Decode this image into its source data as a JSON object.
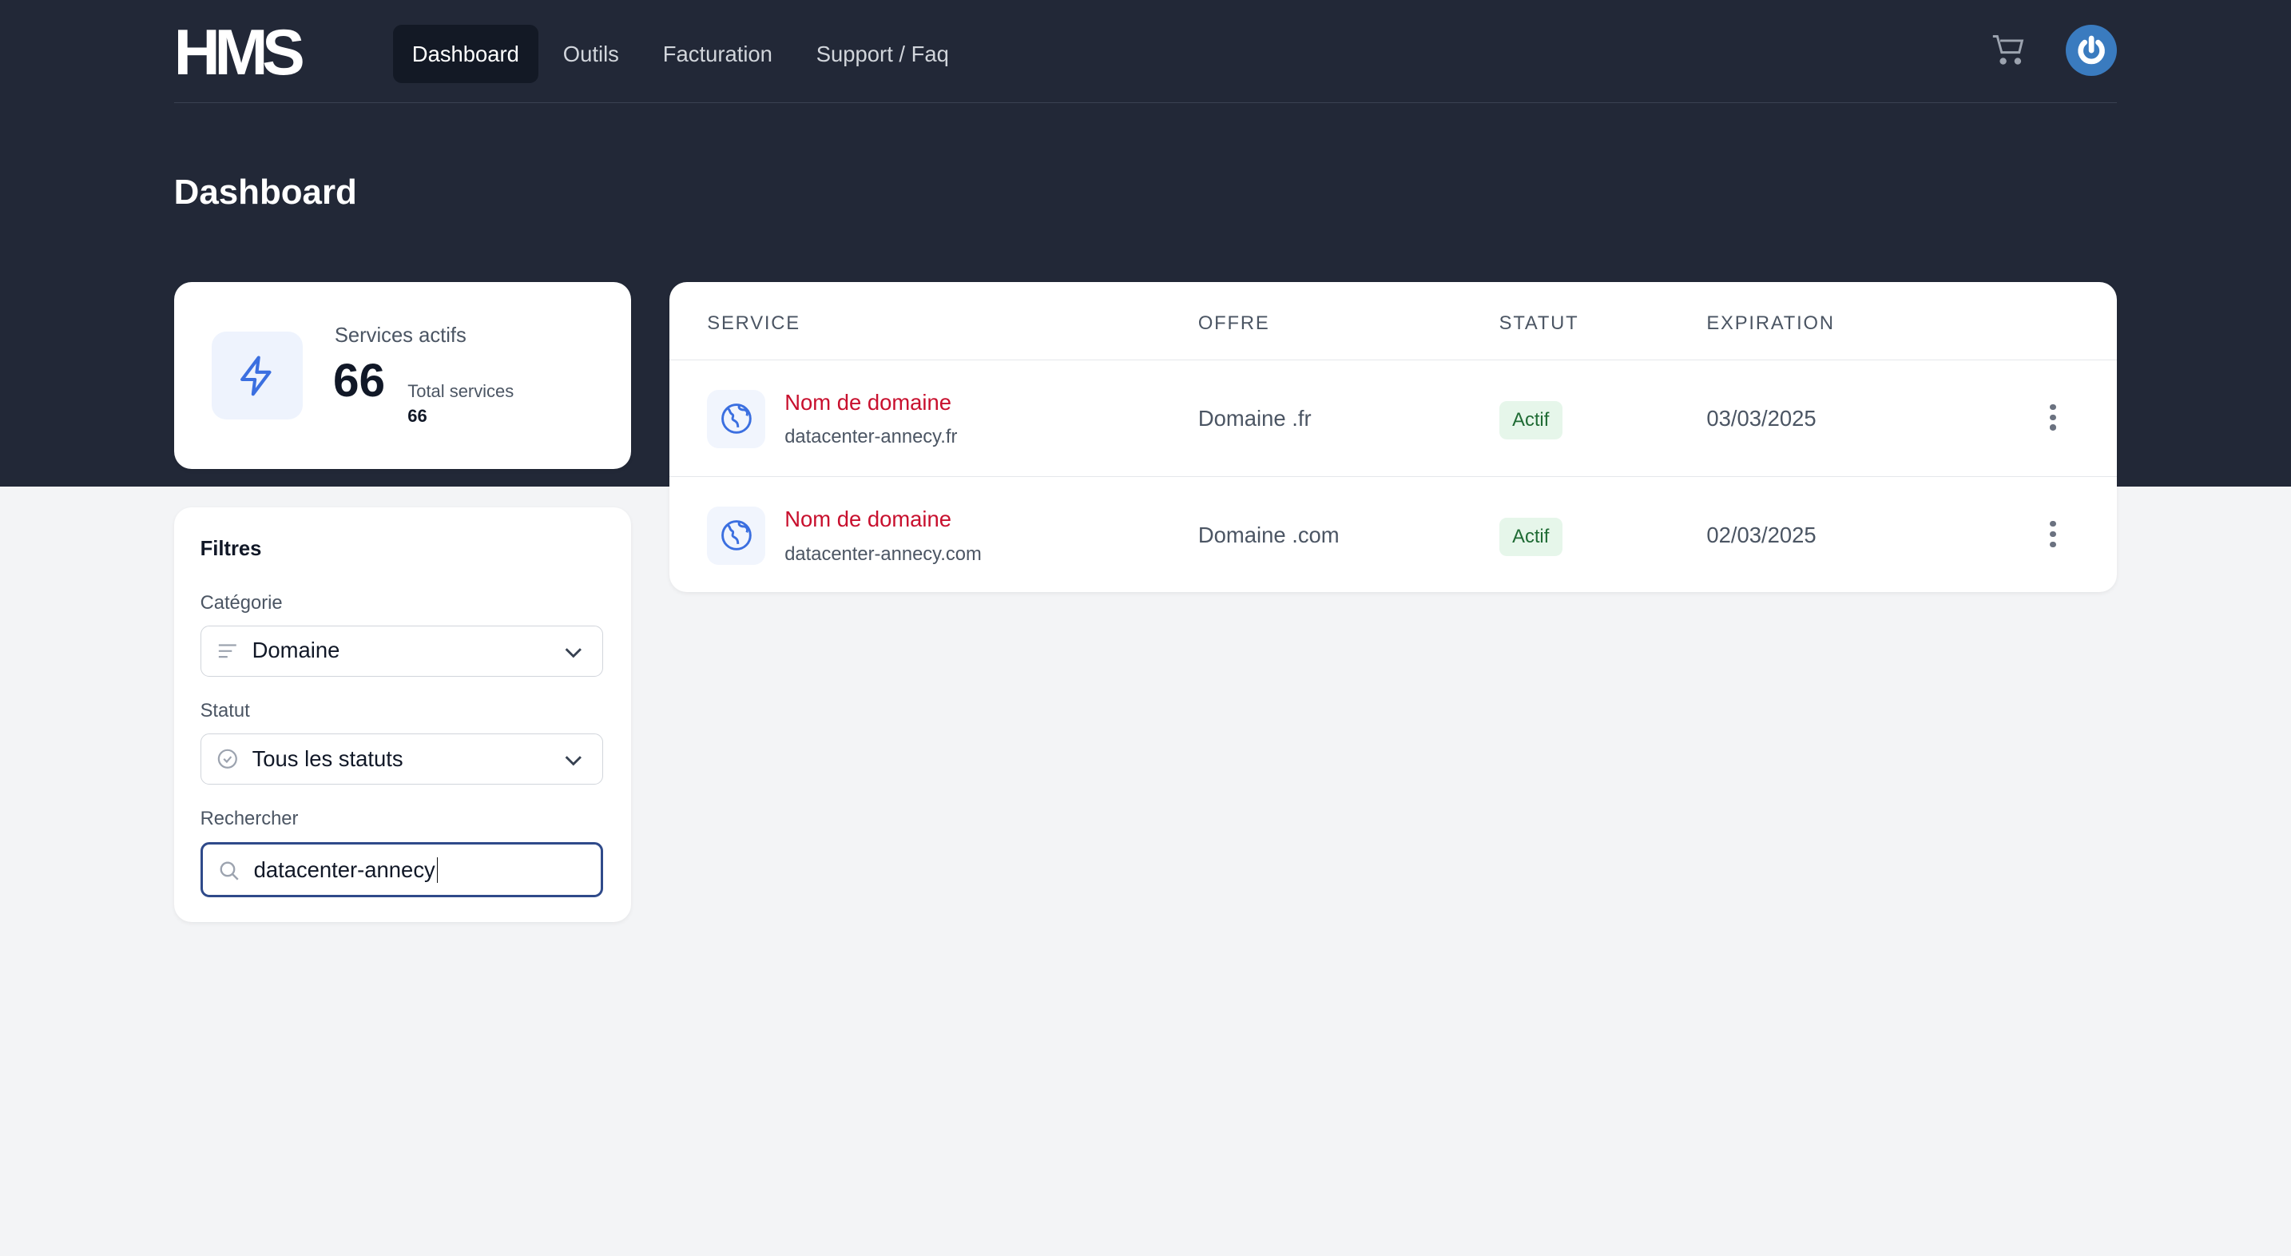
{
  "nav": {
    "logo": "HMS",
    "items": [
      {
        "label": "Dashboard",
        "active": true
      },
      {
        "label": "Outils"
      },
      {
        "label": "Facturation"
      },
      {
        "label": "Support / Faq"
      }
    ]
  },
  "page_title": "Dashboard",
  "stats": {
    "label": "Services actifs",
    "value": "66",
    "total_label": "Total services",
    "total_value": "66"
  },
  "filters": {
    "title": "Filtres",
    "category_label": "Catégorie",
    "category_value": "Domaine",
    "status_label": "Statut",
    "status_value": "Tous les statuts",
    "search_label": "Rechercher",
    "search_value": "datacenter-annecy"
  },
  "table": {
    "headers": [
      "SERVICE",
      "OFFRE",
      "STATUT",
      "EXPIRATION"
    ],
    "rows": [
      {
        "name": "Nom de domaine",
        "domain": "datacenter-annecy.fr",
        "offer": "Domaine .fr",
        "status": "Actif",
        "expiration": "03/03/2025"
      },
      {
        "name": "Nom de domaine",
        "domain": "datacenter-annecy.com",
        "offer": "Domaine .com",
        "status": "Actif",
        "expiration": "02/03/2025"
      }
    ]
  },
  "colors": {
    "header_bg": "#222837",
    "accent_red": "#c8102e",
    "accent_blue": "#3a7bbf",
    "badge_green": "#e6f6ea"
  }
}
